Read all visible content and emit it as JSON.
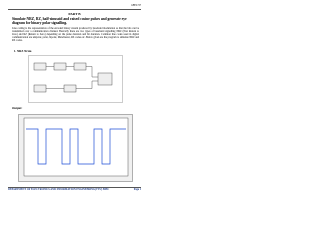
{
  "header": {
    "code": "18EC37"
  },
  "part": "PART B",
  "heading": "Simulate NRZ, RZ, half-sinusoid and raised cosine pulses and generate eye diagram for binary polar signalling.",
  "paragraph": "Line coding is the representation of the encoded binary stream produced by baseband modulation so that the bits can be transmitted over a communication channel. Basically there are two types of baseband signalling NRZ (Non Return to Zero) and RZ (Return to Zero) depending on the pulse duration and bit duration. Common line codes used in digital communication are unipolar, polar, bipolar, Manchester, RZ codes etc. Below given are the program to simulate NRZ and RZ codes.",
  "section": "1. NRZ Nrzm",
  "output_label": "Output:",
  "footer": {
    "dept": "DEPARTMENT OF ELECTRONICS AND INFORMATION ENGINEERING(VTU) BIEC",
    "page": "Page 1"
  }
}
